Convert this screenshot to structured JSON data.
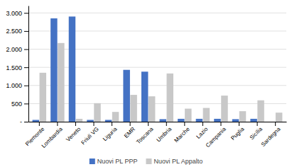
{
  "chart_data": {
    "type": "bar",
    "categories": [
      "Piemonte",
      "Lombardia",
      "Veneto",
      "Friuli VG",
      "Liguria",
      "EMR",
      "Toscana",
      "Umbria",
      "Marche",
      "Lazio",
      "Campania",
      "Puglia",
      "Sicilia",
      "Sardegna"
    ],
    "series": [
      {
        "name": "Nuovi PL PPP",
        "color": "#4472C4",
        "values": [
          50,
          2850,
          2900,
          50,
          50,
          1430,
          1380,
          70,
          80,
          80,
          80,
          70,
          80,
          0
        ]
      },
      {
        "name": "Nuovi PL Appalto",
        "color": "#C8C8C8",
        "values": [
          1350,
          2170,
          80,
          510,
          270,
          740,
          700,
          1330,
          360,
          380,
          720,
          290,
          590,
          250
        ]
      }
    ],
    "ylim": [
      0,
      3200
    ],
    "yticks": [
      {
        "value": 0,
        "label": "-"
      },
      500,
      {
        "value": 1000,
        "label": "1.000"
      },
      {
        "value": 1500,
        "label": "1.500"
      },
      {
        "value": 2000,
        "label": "2.000"
      },
      {
        "value": 2500,
        "label": "2.500"
      },
      {
        "value": 3000,
        "label": "3.000"
      }
    ],
    "grid": true,
    "legend": "bottom"
  }
}
